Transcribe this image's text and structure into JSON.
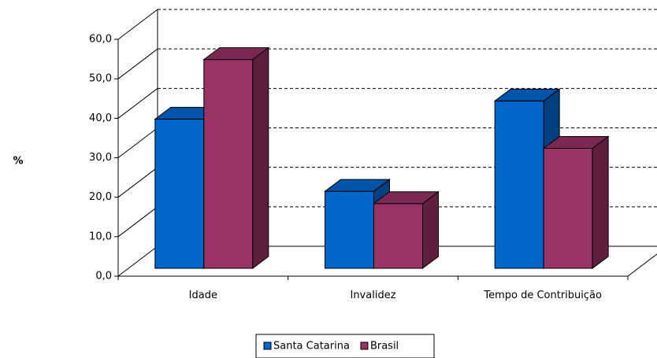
{
  "chart_data": {
    "type": "bar",
    "style": "3d-clustered",
    "categories": [
      "Idade",
      "Invalidez",
      "Tempo de Contribuição"
    ],
    "series": [
      {
        "name": "Santa Catarina",
        "values": [
          37.8,
          19.5,
          42.4
        ]
      },
      {
        "name": "Brasil",
        "values": [
          52.9,
          16.4,
          30.4
        ]
      }
    ],
    "ylabel": "%",
    "ylim": [
      0,
      60
    ],
    "ytick_step": 10,
    "ytick_labels": [
      "0,0",
      "10,0",
      "20,0",
      "30,0",
      "40,0",
      "50,0",
      "60,0"
    ],
    "grid": true,
    "legend_position": "bottom-center",
    "colors": {
      "Santa Catarina": {
        "front": "#0066CC",
        "top": "#0055AA",
        "side": "#003F80"
      },
      "Brasil": {
        "front": "#993366",
        "top": "#7A2952",
        "side": "#5E1F3F"
      },
      "grid": "#000000",
      "axis": "#000000"
    }
  }
}
